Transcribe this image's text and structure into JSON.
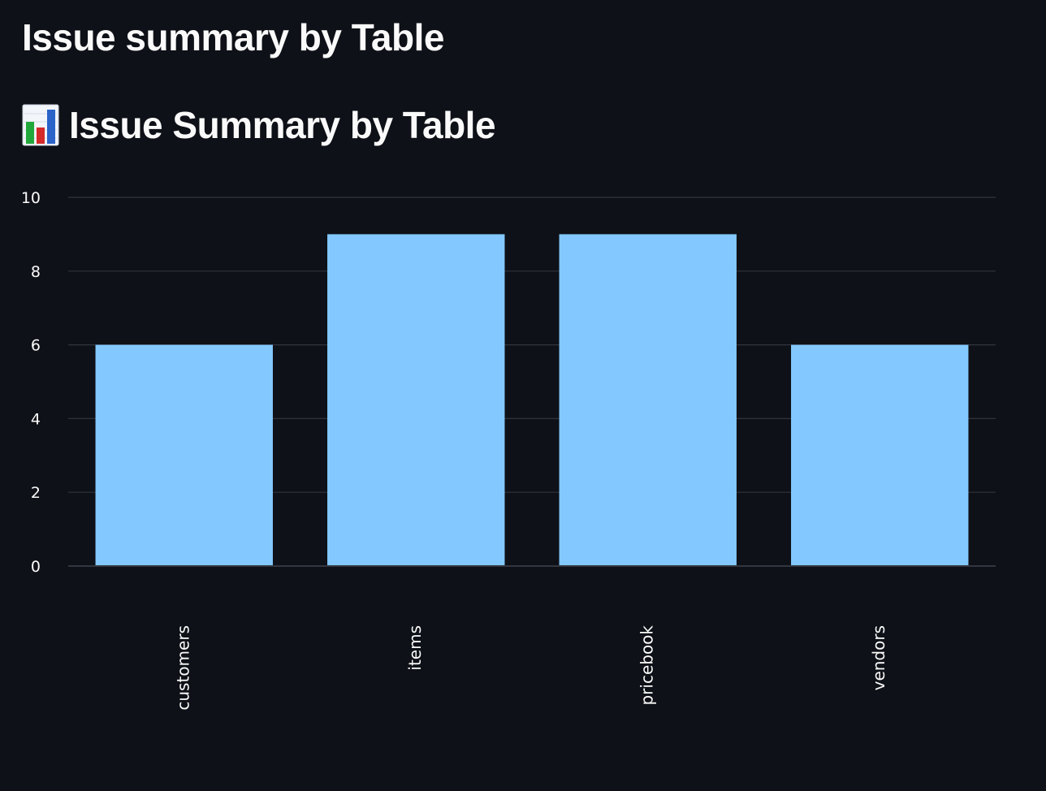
{
  "header": {
    "title": "Issue summary by Table"
  },
  "section": {
    "title": "Issue Summary by Table",
    "icon": "bar-chart-emoji-icon"
  },
  "colors": {
    "background": "#0e1117",
    "bar": "#83c9ff",
    "grid": "#31333f",
    "text": "#fafafa"
  },
  "chart_data": {
    "type": "bar",
    "categories": [
      "customers",
      "items",
      "pricebook",
      "vendors"
    ],
    "values": [
      6,
      9,
      9,
      6
    ],
    "xlabel": "",
    "ylabel": "",
    "ylim": [
      0,
      10
    ],
    "yticks": [
      0,
      2,
      4,
      6,
      8,
      10
    ],
    "grid": true,
    "legend": "none"
  }
}
